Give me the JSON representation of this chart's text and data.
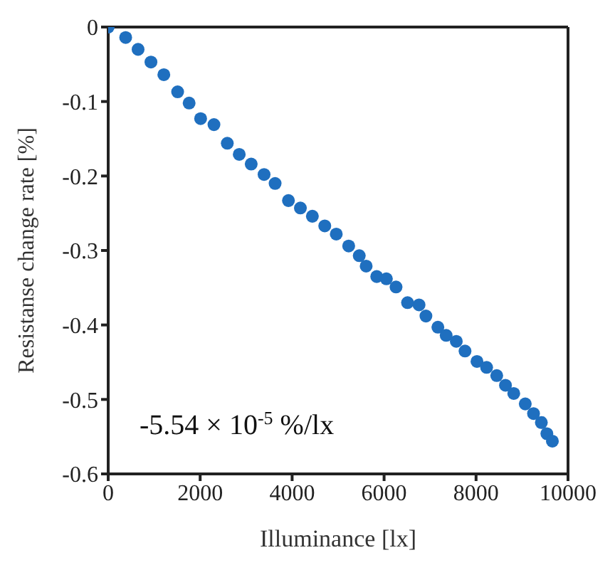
{
  "chart_data": {
    "type": "scatter",
    "xlabel": "Illuminance [lx]",
    "ylabel": "Resistanse change rate [%]",
    "annotations": [
      "-5.54 × 10$^{-5}$ %/lx"
    ],
    "xlim": [
      0,
      10000
    ],
    "xticks": [
      0,
      2000,
      4000,
      6000,
      8000,
      10000
    ],
    "ylim": [
      -0.6,
      0
    ],
    "yticks": [
      -0.6,
      -0.5,
      -0.4,
      -0.3,
      -0.2,
      -0.1,
      0
    ],
    "legend": false,
    "marker": "circle",
    "series": [
      {
        "color": "#1f6fbf",
        "x": [
          0,
          380,
          650,
          930,
          1210,
          1510,
          1760,
          2010,
          2300,
          2590,
          2850,
          3110,
          3390,
          3630,
          3920,
          4180,
          4440,
          4710,
          4960,
          5230,
          5460,
          5610,
          5840,
          6050,
          6260,
          6510,
          6760,
          6910,
          7170,
          7350,
          7570,
          7760,
          8020,
          8230,
          8450,
          8640,
          8820,
          9070,
          9250,
          9420,
          9540,
          9660
        ],
        "values": [
          0,
          -0.014,
          -0.03,
          -0.047,
          -0.064,
          -0.087,
          -0.102,
          -0.123,
          -0.131,
          -0.156,
          -0.171,
          -0.184,
          -0.198,
          -0.21,
          -0.233,
          -0.243,
          -0.254,
          -0.267,
          -0.278,
          -0.294,
          -0.307,
          -0.321,
          -0.335,
          -0.338,
          -0.349,
          -0.37,
          -0.373,
          -0.388,
          -0.403,
          -0.414,
          -0.422,
          -0.435,
          -0.449,
          -0.457,
          -0.468,
          -0.481,
          -0.492,
          -0.506,
          -0.519,
          -0.531,
          -0.546,
          -0.556
        ]
      }
    ]
  }
}
